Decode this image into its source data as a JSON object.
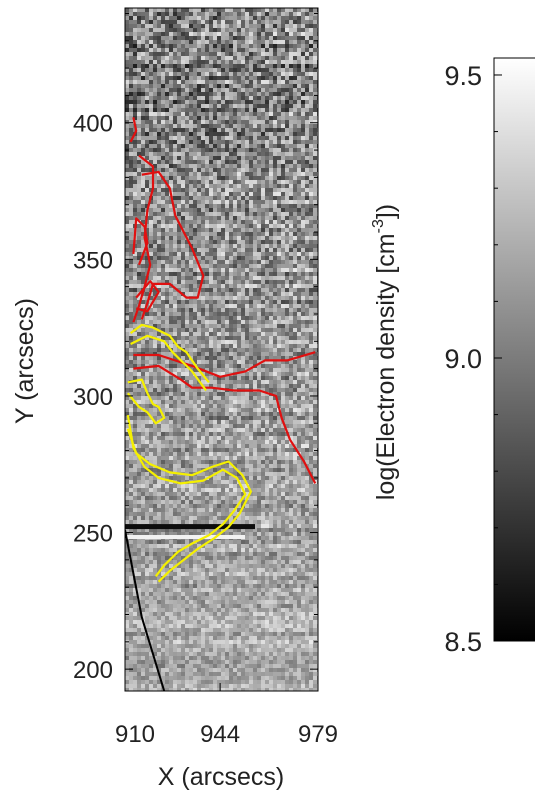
{
  "chart_data": {
    "type": "heatmap",
    "xlabel": "X (arcsecs)",
    "ylabel": "Y (arcsecs)",
    "x_ticks": [
      "910",
      "944",
      "979"
    ],
    "x_tick_values": [
      910,
      944,
      979
    ],
    "y_ticks": [
      "200",
      "250",
      "300",
      "350",
      "400"
    ],
    "y_tick_values": [
      200,
      250,
      300,
      350,
      400
    ],
    "xlim": [
      910,
      979
    ],
    "ylim": [
      192,
      442
    ],
    "colorbar": {
      "label_main": "log(Electron density [cm",
      "label_sup": "-3",
      "label_end": "])",
      "ticks": [
        "8.5",
        "9.0",
        "9.5"
      ],
      "tick_values": [
        8.5,
        9.0,
        9.5
      ],
      "range": [
        8.5,
        9.53
      ],
      "colormap": "grayscale"
    },
    "colors": {
      "red_contour": "#e01010",
      "yellow_contour": "#f5f000",
      "limb_line": "#000000"
    },
    "contours": {
      "red": [
        [
          [
            913,
            402
          ],
          [
            914,
            397
          ],
          [
            912,
            393
          ]
        ],
        [
          [
            915,
            388
          ],
          [
            920,
            384
          ],
          [
            920,
            376
          ],
          [
            918,
            368
          ],
          [
            917,
            358
          ],
          [
            919,
            348
          ],
          [
            917,
            340
          ],
          [
            915,
            333
          ],
          [
            913,
            327
          ]
        ],
        [
          [
            916,
            381
          ],
          [
            922,
            382
          ],
          [
            926,
            376
          ],
          [
            928,
            366
          ],
          [
            934,
            354
          ],
          [
            938,
            344
          ],
          [
            936,
            336
          ],
          [
            932,
            336
          ],
          [
            926,
            341
          ],
          [
            920,
            341
          ],
          [
            918,
            334
          ],
          [
            916,
            328
          ]
        ],
        [
          [
            915,
            348
          ],
          [
            918,
            356
          ],
          [
            917,
            362
          ],
          [
            914,
            365
          ],
          [
            913,
            352
          ]
        ],
        [
          [
            914,
            336
          ],
          [
            919,
            342
          ],
          [
            922,
            338
          ],
          [
            918,
            331
          ],
          [
            914,
            332
          ]
        ],
        [
          [
            913,
            315
          ],
          [
            922,
            315
          ],
          [
            934,
            311
          ],
          [
            944,
            307
          ],
          [
            953,
            309
          ],
          [
            960,
            313
          ],
          [
            968,
            313
          ],
          [
            978,
            316
          ]
        ],
        [
          [
            913,
            310
          ],
          [
            922,
            311
          ],
          [
            930,
            306
          ],
          [
            934,
            303
          ],
          [
            941,
            303
          ],
          [
            949,
            302
          ],
          [
            958,
            302
          ],
          [
            964,
            300
          ],
          [
            966,
            292
          ],
          [
            969,
            284
          ],
          [
            974,
            276
          ],
          [
            978,
            268
          ]
        ]
      ],
      "yellow": [
        [
          [
            912,
            323
          ],
          [
            916,
            326
          ],
          [
            920,
            325
          ],
          [
            926,
            322
          ],
          [
            929,
            318
          ],
          [
            932,
            316
          ],
          [
            936,
            310
          ],
          [
            940,
            305
          ]
        ],
        [
          [
            912,
            319
          ],
          [
            918,
            322
          ],
          [
            924,
            320
          ],
          [
            927,
            316
          ],
          [
            930,
            313
          ],
          [
            934,
            309
          ],
          [
            939,
            302
          ]
        ],
        [
          [
            911,
            305
          ],
          [
            916,
            306
          ],
          [
            918,
            301
          ],
          [
            920,
            297
          ],
          [
            922,
            296
          ],
          [
            924,
            292
          ],
          [
            921,
            290
          ],
          [
            918,
            294
          ],
          [
            915,
            296
          ],
          [
            911,
            301
          ]
        ],
        [
          [
            911,
            293
          ],
          [
            913,
            281
          ],
          [
            917,
            274
          ],
          [
            922,
            270
          ],
          [
            930,
            268
          ],
          [
            938,
            269
          ],
          [
            945,
            273
          ],
          [
            950,
            270
          ],
          [
            953,
            264
          ],
          [
            949,
            258
          ],
          [
            945,
            253
          ],
          [
            940,
            249
          ],
          [
            934,
            246
          ],
          [
            929,
            243
          ],
          [
            924,
            238
          ],
          [
            921,
            234
          ]
        ],
        [
          [
            911,
            288
          ],
          [
            914,
            279
          ],
          [
            919,
            275
          ],
          [
            926,
            272
          ],
          [
            934,
            271
          ],
          [
            941,
            274
          ],
          [
            947,
            276
          ],
          [
            952,
            271
          ],
          [
            955,
            265
          ],
          [
            951,
            257
          ],
          [
            947,
            252
          ],
          [
            942,
            248
          ],
          [
            936,
            244
          ],
          [
            931,
            240
          ],
          [
            926,
            236
          ],
          [
            922,
            232
          ]
        ]
      ],
      "limb": [
        [
          910,
          251
        ],
        [
          916,
          219
        ],
        [
          924,
          192
        ]
      ]
    }
  }
}
